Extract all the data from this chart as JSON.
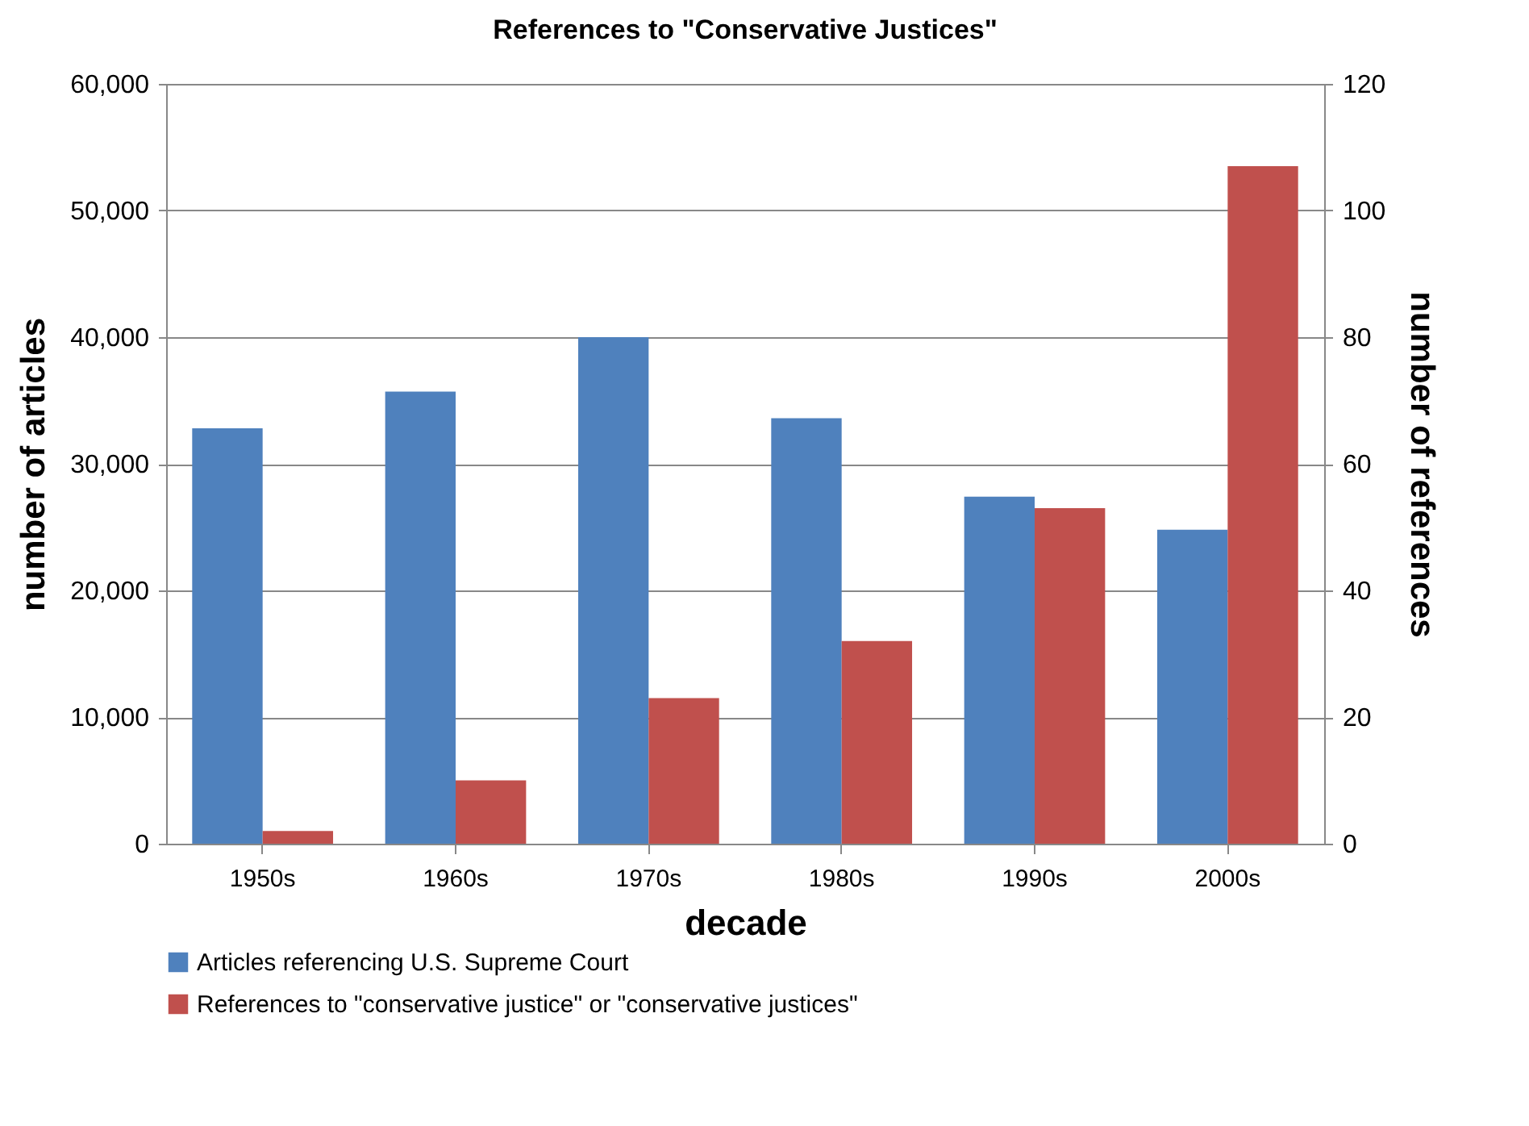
{
  "chart_data": {
    "type": "bar",
    "title": "References to \"Conservative Justices\"",
    "xlabel": "decade",
    "ylabel": "number of articles",
    "y2label": "number of references",
    "categories": [
      "1950s",
      "1960s",
      "1970s",
      "1980s",
      "1990s",
      "2000s"
    ],
    "series": [
      {
        "name": "Articles referencing U.S. Supreme Court",
        "color": "#4f81bd",
        "values": [
          32800,
          35700,
          40000,
          33600,
          27400,
          24800
        ]
      },
      {
        "name": "References to \"conservative justice\" or \"conservative justices\"",
        "color": "#c0504d",
        "axis": "y2",
        "values": [
          2,
          10,
          23,
          32,
          53,
          107
        ]
      }
    ],
    "ylim": [
      0,
      60000
    ],
    "yticks": [
      0,
      {
        "value": 10000,
        "label": "10,000"
      },
      {
        "value": 20000,
        "label": "20,000"
      },
      {
        "value": 30000,
        "label": "30,000"
      },
      {
        "value": 40000,
        "label": "40,000"
      },
      {
        "value": 50000,
        "label": "50,000"
      },
      {
        "value": 60000,
        "label": "60,000"
      }
    ],
    "y2lim": [
      0,
      120
    ],
    "y2ticks": [
      0,
      20,
      40,
      60,
      80,
      100,
      120
    ],
    "grid": "y",
    "legend": "bottom"
  }
}
